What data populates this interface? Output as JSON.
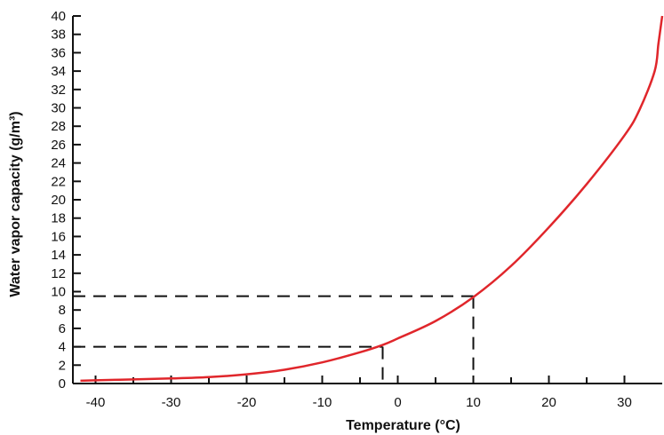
{
  "chart_data": {
    "type": "line",
    "title": "",
    "xlabel": "Temperature (°C)",
    "ylabel": "Water vapor capacity (g/m³)",
    "xlim": [
      -43,
      35
    ],
    "ylim": [
      0,
      40
    ],
    "grid": false,
    "x_ticks": [
      -40,
      -30,
      -20,
      -10,
      0,
      10,
      20,
      30
    ],
    "x_tick_labels": [
      "-40",
      "-30",
      "-20",
      "-10",
      "0",
      "10",
      "20",
      "30"
    ],
    "y_ticks": [
      0,
      2,
      4,
      6,
      8,
      10,
      12,
      14,
      16,
      18,
      20,
      22,
      24,
      26,
      28,
      30,
      32,
      34,
      36,
      38,
      40
    ],
    "y_tick_labels": [
      "0",
      "2",
      "4",
      "6",
      "8",
      "10",
      "12",
      "14",
      "16",
      "18",
      "20",
      "22",
      "24",
      "26",
      "28",
      "30",
      "32",
      "34",
      "36",
      "38",
      "40"
    ],
    "series": [
      {
        "color": "#e0262b",
        "x": [
          -42,
          -40,
          -35,
          -30,
          -25,
          -20,
          -15,
          -10,
          -5,
          -2,
          0,
          5,
          10,
          15,
          20,
          25,
          30,
          32,
          34,
          34.5,
          35
        ],
        "y": [
          0.3,
          0.35,
          0.45,
          0.55,
          0.7,
          1.0,
          1.5,
          2.3,
          3.4,
          4.2,
          4.9,
          6.8,
          9.4,
          12.8,
          17.0,
          21.7,
          27.0,
          29.8,
          34.0,
          37.0,
          40.0
        ]
      }
    ],
    "reference_lines": [
      {
        "x": -2,
        "y": 4,
        "color": "#111111"
      },
      {
        "x": 10,
        "y": 9.5,
        "color": "#111111"
      }
    ]
  }
}
